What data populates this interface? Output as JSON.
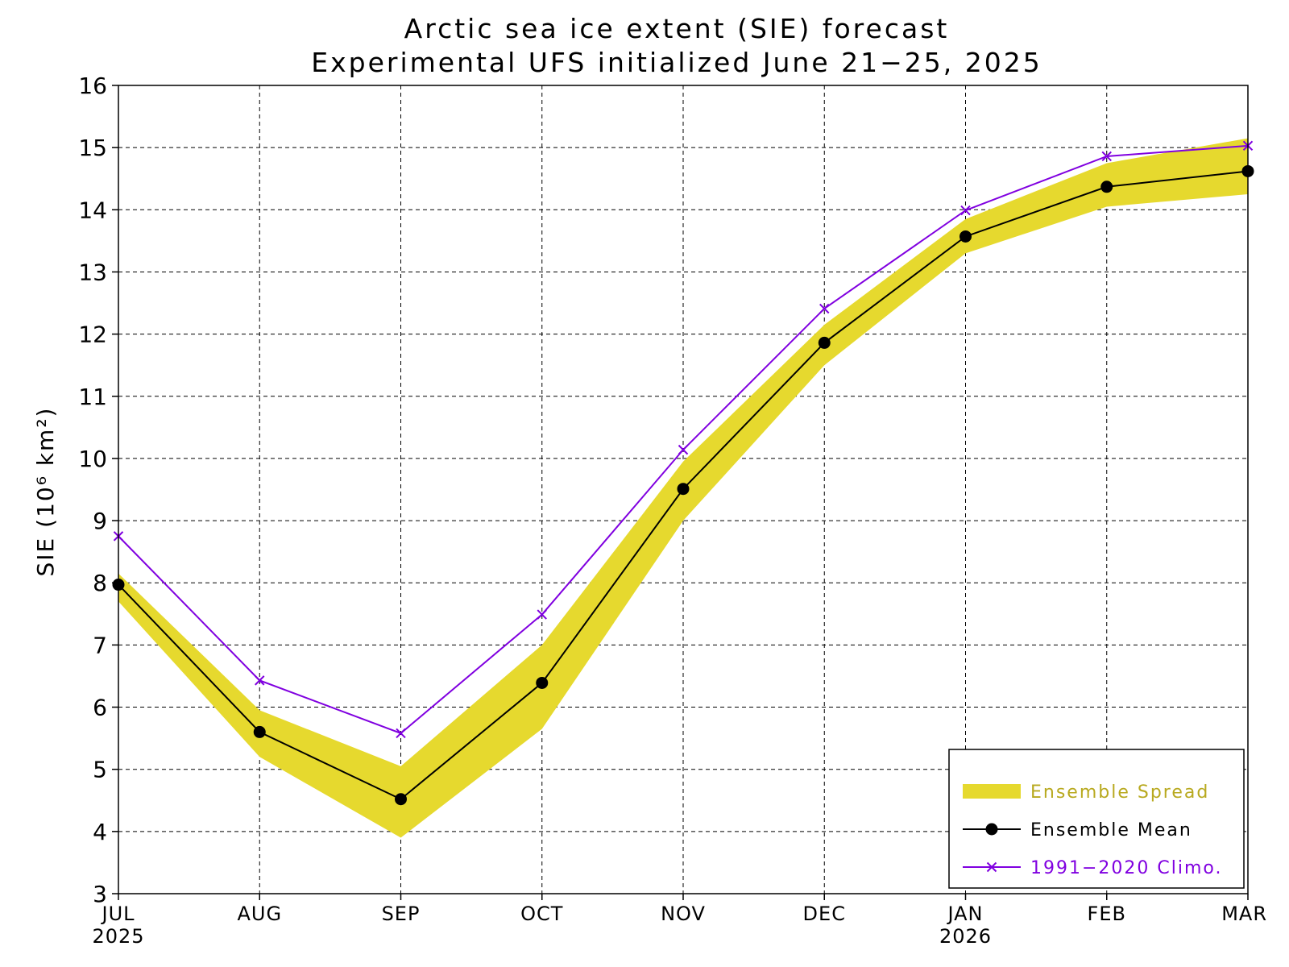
{
  "chart_data": {
    "type": "line",
    "title": "Arctic sea ice extent (SIE) forecast",
    "subtitle": "Experimental UFS initialized June 21−25, 2025",
    "ylabel": "SIE (10⁶ km²)",
    "xlabel": "",
    "ylim": [
      3,
      16
    ],
    "yticks": [
      3,
      4,
      5,
      6,
      7,
      8,
      9,
      10,
      11,
      12,
      13,
      14,
      15,
      16
    ],
    "grid": true,
    "legend_position": "bottom-right",
    "categories": [
      "JUL",
      "AUG",
      "SEP",
      "OCT",
      "NOV",
      "DEC",
      "JAN",
      "FEB",
      "MAR"
    ],
    "year_labels": [
      "2025",
      "",
      "",
      "",
      "",
      "",
      "2026",
      "",
      ""
    ],
    "series": [
      {
        "name": "Ensemble Spread",
        "kind": "band",
        "color": "#e6d92e",
        "text_color": "#b8a91f",
        "lower": [
          7.7,
          5.2,
          3.9,
          5.65,
          9.0,
          11.5,
          13.3,
          14.05,
          14.25
        ],
        "upper": [
          8.15,
          5.95,
          5.05,
          7.0,
          9.95,
          12.15,
          13.85,
          14.75,
          15.15
        ]
      },
      {
        "name": "Ensemble Mean",
        "kind": "line-dot",
        "color": "#000000",
        "text_color": "#000000",
        "values": [
          7.97,
          5.6,
          4.52,
          6.39,
          9.51,
          11.86,
          13.57,
          14.37,
          14.62
        ]
      },
      {
        "name": "1991−2020 Climo.",
        "kind": "line-x",
        "color": "#8000e0",
        "text_color": "#8000e0",
        "values": [
          8.75,
          6.43,
          5.58,
          7.49,
          10.14,
          12.41,
          13.99,
          14.86,
          15.03
        ]
      }
    ]
  }
}
